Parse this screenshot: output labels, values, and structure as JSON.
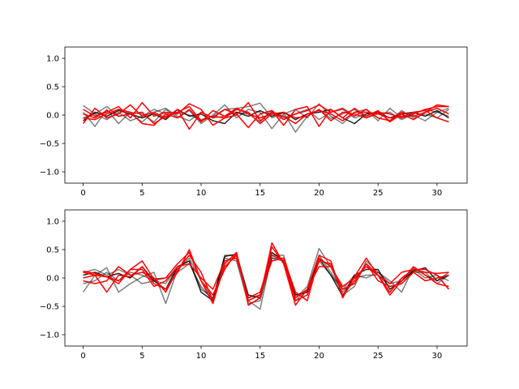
{
  "chart_data": [
    {
      "type": "line",
      "title": "",
      "xlabel": "",
      "ylabel": "",
      "xlim": [
        -1.55,
        32.55
      ],
      "ylim": [
        -1.2,
        1.2
      ],
      "xticks": [
        "0",
        "5",
        "10",
        "15",
        "20",
        "25",
        "30"
      ],
      "yticks": [
        "−1.0",
        "−0.5",
        "0.0",
        "0.5",
        "1.0"
      ],
      "xtick_values": [
        0,
        5,
        10,
        15,
        20,
        25,
        30
      ],
      "ytick_values": [
        -1.0,
        -0.5,
        0.0,
        0.5,
        1.0
      ],
      "grid": false,
      "x": [
        0,
        1,
        2,
        3,
        4,
        5,
        6,
        7,
        8,
        9,
        10,
        11,
        12,
        13,
        14,
        15,
        16,
        17,
        18,
        19,
        20,
        21,
        22,
        23,
        24,
        25,
        26,
        27,
        28,
        29,
        30,
        31
      ],
      "series": [
        {
          "color": "#000000",
          "alpha": 0.5,
          "values": [
            0.17,
            0.02,
            -0.08,
            0.05,
            -0.1,
            -0.02,
            0.1,
            0.02,
            0.05,
            0.0,
            -0.08,
            -0.02,
            0.1,
            0.12,
            0.15,
            0.21,
            -0.05,
            0.04,
            -0.3,
            -0.02,
            0.1,
            -0.06,
            0.02,
            0.1,
            -0.05,
            0.02,
            0.05,
            -0.08,
            0.02,
            0.1,
            0.05,
            0.12
          ]
        },
        {
          "color": "#000000",
          "alpha": 0.5,
          "values": [
            0.05,
            -0.2,
            0.1,
            -0.15,
            0.05,
            0.02,
            -0.12,
            0.1,
            -0.05,
            0.08,
            -0.15,
            0.0,
            0.18,
            -0.05,
            0.1,
            0.05,
            -0.24,
            0.02,
            0.1,
            -0.05,
            0.2,
            -0.02,
            -0.15,
            0.05,
            0.1,
            -0.1,
            0.12,
            -0.05,
            0.0,
            -0.1,
            0.05,
            -0.02
          ]
        },
        {
          "color": "#000000",
          "alpha": 0.5,
          "values": [
            -0.05,
            0.02,
            0.15,
            -0.02,
            0.02,
            -0.12,
            0.05,
            0.12,
            -0.02,
            -0.1,
            0.05,
            -0.05,
            -0.02,
            0.05,
            0.02,
            -0.12,
            0.08,
            -0.05,
            0.02,
            0.1,
            -0.08,
            0.05,
            0.1,
            -0.05,
            0.02,
            0.05,
            -0.1,
            0.08,
            -0.05,
            0.02,
            -0.05,
            0.1
          ]
        },
        {
          "color": "#000000",
          "alpha": 0.85,
          "values": [
            -0.1,
            0.05,
            -0.02,
            0.08,
            0.02,
            -0.05,
            0.02,
            -0.08,
            0.1,
            -0.02,
            0.02,
            -0.1,
            -0.15,
            0.05,
            -0.02,
            0.08,
            -0.02,
            0.05,
            -0.08,
            0.02,
            0.05,
            0.1,
            -0.05,
            -0.15,
            0.02,
            0.05,
            -0.05,
            0.02,
            0.05,
            -0.02,
            0.08,
            -0.05
          ]
        },
        {
          "color": "#ff0000",
          "alpha": 1,
          "values": [
            0.1,
            -0.02,
            0.05,
            0.15,
            -0.05,
            0.22,
            -0.02,
            0.05,
            0.02,
            0.2,
            0.1,
            -0.18,
            -0.05,
            0.0,
            0.22,
            -0.1,
            0.05,
            -0.08,
            0.02,
            0.08,
            0.18,
            0.05,
            0.12,
            -0.02,
            0.1,
            -0.05,
            -0.1,
            0.05,
            -0.02,
            0.05,
            0.18,
            0.15
          ]
        },
        {
          "color": "#ff0000",
          "alpha": 1,
          "values": [
            -0.15,
            0.12,
            -0.05,
            0.02,
            0.18,
            -0.02,
            0.05,
            -0.05,
            0.1,
            -0.25,
            0.05,
            -0.05,
            0.1,
            0.02,
            -0.22,
            0.02,
            0.08,
            -0.18,
            0.1,
            0.15,
            -0.2,
            0.1,
            -0.05,
            0.12,
            -0.02,
            0.08,
            -0.12,
            0.02,
            -0.08,
            0.05,
            0.12,
            0.02
          ]
        },
        {
          "color": "#ff0000",
          "alpha": 1,
          "values": [
            0.02,
            -0.05,
            0.08,
            -0.02,
            0.02,
            0.05,
            -0.15,
            -0.02,
            0.05,
            0.15,
            -0.1,
            -0.02,
            -0.05,
            0.1,
            0.05,
            -0.15,
            0.02,
            0.05,
            -0.05,
            -0.02,
            0.1,
            -0.1,
            0.05,
            0.02,
            -0.05,
            0.05,
            0.02,
            -0.05,
            0.05,
            0.08,
            -0.05,
            -0.12
          ]
        },
        {
          "color": "#ff0000",
          "alpha": 1,
          "values": [
            -0.05,
            -0.08,
            0.02,
            0.1,
            0.05,
            -0.15,
            -0.18,
            0.02,
            -0.05,
            0.1,
            -0.12,
            0.08,
            -0.02,
            0.12,
            0.02,
            -0.05,
            0.02,
            -0.02,
            -0.15,
            0.02,
            0.08,
            0.02,
            -0.1,
            0.05,
            0.05,
            0.02,
            -0.05,
            -0.02,
            0.02,
            0.1,
            0.15,
            0.15
          ]
        }
      ]
    },
    {
      "type": "line",
      "title": "",
      "xlabel": "",
      "ylabel": "",
      "xlim": [
        -1.55,
        32.55
      ],
      "ylim": [
        -1.2,
        1.2
      ],
      "xticks": [
        "0",
        "5",
        "10",
        "15",
        "20",
        "25",
        "30"
      ],
      "yticks": [
        "−1.0",
        "−0.5",
        "0.0",
        "0.5",
        "1.0"
      ],
      "xtick_values": [
        0,
        5,
        10,
        15,
        20,
        25,
        30
      ],
      "ytick_values": [
        -1.0,
        -0.5,
        0.0,
        0.5,
        1.0
      ],
      "grid": false,
      "x": [
        0,
        1,
        2,
        3,
        4,
        5,
        6,
        7,
        8,
        9,
        10,
        11,
        12,
        13,
        14,
        15,
        16,
        17,
        18,
        19,
        20,
        21,
        22,
        23,
        24,
        25,
        26,
        27,
        28,
        29,
        30,
        31
      ],
      "series": [
        {
          "color": "#000000",
          "alpha": 0.5,
          "values": [
            -0.25,
            0.05,
            0.18,
            -0.25,
            -0.1,
            0.02,
            0.1,
            -0.45,
            0.15,
            0.35,
            -0.05,
            -0.38,
            0.4,
            0.4,
            -0.4,
            -0.55,
            0.4,
            0.4,
            -0.35,
            -0.15,
            0.52,
            0.2,
            -0.3,
            -0.15,
            0.3,
            0.1,
            -0.05,
            -0.25,
            0.18,
            0.05,
            -0.05,
            0.1
          ]
        },
        {
          "color": "#000000",
          "alpha": 0.5,
          "values": [
            0.1,
            0.15,
            0.05,
            0.15,
            0.05,
            -0.1,
            -0.05,
            0.0,
            0.1,
            0.25,
            -0.15,
            -0.4,
            0.3,
            0.35,
            -0.35,
            -0.3,
            0.35,
            0.35,
            -0.3,
            -0.25,
            0.4,
            0.1,
            -0.25,
            0.0,
            0.05,
            0.05,
            -0.15,
            -0.1,
            0.1,
            0.1,
            -0.1,
            0.05
          ]
        },
        {
          "color": "#000000",
          "alpha": 0.5,
          "values": [
            -0.1,
            -0.05,
            0.1,
            -0.05,
            0.1,
            0.05,
            -0.05,
            -0.1,
            0.2,
            0.3,
            -0.2,
            -0.35,
            0.35,
            0.3,
            -0.45,
            -0.4,
            0.35,
            0.3,
            -0.4,
            -0.2,
            0.3,
            0.05,
            -0.2,
            0.05,
            0.0,
            0.1,
            -0.1,
            -0.05,
            0.15,
            0.0,
            0.05,
            -0.05
          ]
        },
        {
          "color": "#000000",
          "alpha": 0.85,
          "values": [
            0.05,
            0.1,
            0.02,
            0.08,
            0.0,
            0.2,
            -0.05,
            -0.2,
            0.2,
            0.3,
            -0.25,
            -0.4,
            0.38,
            0.42,
            -0.3,
            -0.35,
            0.45,
            0.3,
            -0.3,
            -0.25,
            0.35,
            0.05,
            -0.32,
            0.05,
            0.15,
            0.15,
            -0.2,
            -0.05,
            0.12,
            0.18,
            -0.05,
            0.05
          ]
        },
        {
          "color": "#ff0000",
          "alpha": 1,
          "values": [
            0.1,
            0.05,
            -0.25,
            0.05,
            0.02,
            0.2,
            -0.1,
            -0.2,
            0.1,
            0.5,
            -0.05,
            -0.45,
            0.25,
            0.45,
            -0.48,
            -0.35,
            0.62,
            0.25,
            -0.48,
            -0.2,
            0.4,
            0.3,
            -0.35,
            0.02,
            0.35,
            0.05,
            -0.25,
            0.0,
            0.15,
            0.15,
            0.05,
            -0.2
          ]
        },
        {
          "color": "#ff0000",
          "alpha": 1,
          "values": [
            0.12,
            0.08,
            0.02,
            -0.1,
            0.15,
            0.3,
            -0.02,
            0.0,
            0.25,
            0.45,
            -0.05,
            -0.3,
            0.15,
            0.45,
            -0.4,
            -0.3,
            0.3,
            0.35,
            -0.25,
            -0.4,
            0.35,
            0.2,
            -0.2,
            -0.1,
            0.25,
            -0.05,
            -0.15,
            -0.1,
            0.1,
            -0.05,
            0.0,
            0.05
          ]
        },
        {
          "color": "#ff0000",
          "alpha": 1,
          "values": [
            -0.05,
            -0.1,
            -0.05,
            0.2,
            0.05,
            0.1,
            0.0,
            -0.25,
            0.15,
            0.4,
            0.1,
            -0.4,
            0.2,
            0.4,
            -0.4,
            -0.3,
            0.55,
            0.25,
            -0.4,
            -0.3,
            0.3,
            0.25,
            -0.3,
            -0.05,
            0.25,
            0.05,
            -0.3,
            -0.05,
            0.2,
            0.05,
            -0.1,
            -0.15
          ]
        },
        {
          "color": "#ff0000",
          "alpha": 1,
          "values": [
            0.0,
            0.05,
            0.02,
            -0.05,
            0.15,
            0.15,
            -0.15,
            -0.05,
            0.2,
            0.25,
            0.0,
            -0.2,
            0.3,
            0.35,
            -0.35,
            -0.25,
            0.4,
            0.3,
            -0.35,
            -0.2,
            0.2,
            0.2,
            -0.15,
            0.0,
            0.2,
            0.05,
            -0.1,
            0.1,
            0.15,
            0.1,
            0.08,
            0.1
          ]
        }
      ]
    }
  ]
}
